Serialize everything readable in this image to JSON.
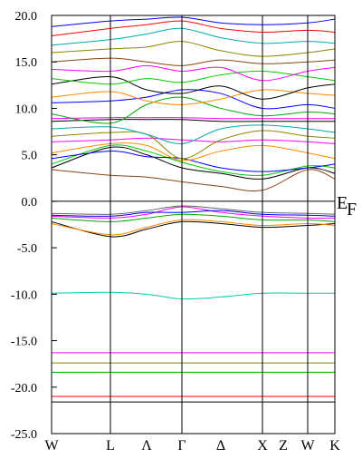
{
  "chart_data": {
    "type": "line",
    "title": "",
    "xlabel": "",
    "ylabel": "",
    "ylim": [
      -25,
      20
    ],
    "y_ticks": [
      20.0,
      15.0,
      10.0,
      5.0,
      0.0,
      -5.0,
      -10.0,
      -15.0,
      -20.0,
      -25.0
    ],
    "y_tick_labels": [
      "20.0",
      "15.0",
      "10.0",
      "5.0",
      "0.0",
      "-5.0",
      "-10.0",
      "-15.0",
      "-20.0",
      "-25.0"
    ],
    "k_path": [
      "W",
      "L",
      "Λ",
      "Γ",
      "Δ",
      "X",
      "Z",
      "W",
      "K"
    ],
    "high_symmetry_points": [
      "W",
      "L",
      "Γ",
      "X",
      "W",
      "K"
    ],
    "x": [
      0,
      1,
      2,
      3,
      4,
      5,
      6,
      7
    ],
    "fermi_label": {
      "main": "E",
      "sub": "F"
    },
    "grid": false,
    "legend": false,
    "series": [
      {
        "color": "#000000",
        "values": [
          -21.6,
          -21.6,
          -21.6,
          -21.6,
          -21.6,
          -21.6,
          -21.6,
          -21.6
        ]
      },
      {
        "color": "#ff0000",
        "values": [
          -21.0,
          -21.0,
          -21.0,
          -21.0,
          -21.0,
          -21.0,
          -21.0,
          -21.0
        ]
      },
      {
        "color": "#00aa00",
        "values": [
          -18.4,
          -18.4,
          -18.4,
          -18.4,
          -18.4,
          -18.4,
          -18.4,
          -18.4
        ]
      },
      {
        "color": "#888800",
        "values": [
          -17.4,
          -17.4,
          -17.4,
          -17.4,
          -17.4,
          -17.4,
          -17.4,
          -17.4
        ]
      },
      {
        "color": "#ff00ff",
        "values": [
          -16.3,
          -16.3,
          -16.3,
          -16.3,
          -16.3,
          -16.3,
          -16.3,
          -16.3
        ]
      },
      {
        "color": "#00ccaa",
        "values": [
          -9.9,
          -9.8,
          -10.0,
          -10.5,
          -10.3,
          -9.9,
          -9.9,
          -9.9
        ]
      },
      {
        "color": "#000000",
        "values": [
          -2.2,
          -3.8,
          -3.0,
          -2.2,
          -2.4,
          -2.8,
          -2.6,
          -2.4
        ]
      },
      {
        "color": "#ff8800",
        "values": [
          -2.4,
          -3.6,
          -2.8,
          -2.0,
          -2.2,
          -2.6,
          -2.4,
          -2.6
        ]
      },
      {
        "color": "#00aa00",
        "values": [
          -1.8,
          -2.2,
          -1.8,
          -1.4,
          -1.6,
          -2.0,
          -2.0,
          -2.2
        ]
      },
      {
        "color": "#ff00ff",
        "values": [
          -1.6,
          -1.8,
          -1.4,
          -0.6,
          -1.2,
          -1.6,
          -1.8,
          -1.8
        ]
      },
      {
        "color": "#0000ff",
        "values": [
          -1.5,
          -1.6,
          -1.2,
          -1.2,
          -1.0,
          -1.4,
          -1.5,
          -1.6
        ]
      },
      {
        "color": "#666666",
        "values": [
          -1.3,
          -1.4,
          -1.0,
          -0.5,
          -0.8,
          -1.2,
          -1.3,
          -1.4
        ]
      },
      {
        "color": "#000000",
        "values": [
          3.6,
          5.8,
          5.0,
          3.6,
          3.0,
          2.4,
          3.6,
          3.0
        ]
      },
      {
        "color": "#8b4513",
        "values": [
          3.4,
          2.8,
          2.6,
          2.1,
          1.6,
          1.2,
          3.4,
          2.4
        ]
      },
      {
        "color": "#00cc00",
        "values": [
          4.0,
          6.0,
          5.4,
          4.2,
          3.2,
          2.8,
          3.8,
          3.6
        ]
      },
      {
        "color": "#0000ff",
        "values": [
          4.6,
          5.4,
          4.8,
          4.6,
          3.6,
          3.2,
          3.6,
          4.0
        ]
      },
      {
        "color": "#ff8800",
        "values": [
          5.2,
          6.2,
          6.0,
          4.4,
          5.4,
          6.0,
          5.2,
          4.6
        ]
      },
      {
        "color": "#ff00ff",
        "values": [
          6.4,
          6.6,
          6.8,
          6.6,
          6.4,
          6.6,
          6.4,
          6.2
        ]
      },
      {
        "color": "#888800",
        "values": [
          7.0,
          7.4,
          7.2,
          4.6,
          6.6,
          7.6,
          7.0,
          6.8
        ]
      },
      {
        "color": "#00aaaa",
        "values": [
          7.8,
          8.0,
          7.2,
          6.2,
          7.8,
          8.2,
          7.8,
          7.4
        ]
      },
      {
        "color": "#000000",
        "values": [
          8.6,
          8.8,
          8.8,
          8.8,
          8.6,
          8.6,
          8.6,
          8.6
        ]
      },
      {
        "color": "#ff00ff",
        "values": [
          8.9,
          9.0,
          9.0,
          9.0,
          8.9,
          8.9,
          8.9,
          8.9
        ]
      },
      {
        "color": "#00aa00",
        "values": [
          9.4,
          8.4,
          10.4,
          11.2,
          10.0,
          9.2,
          9.6,
          9.4
        ]
      },
      {
        "color": "#0000ff",
        "values": [
          10.6,
          10.8,
          11.2,
          12.0,
          11.6,
          10.0,
          10.4,
          10.0
        ]
      },
      {
        "color": "#ff8800",
        "values": [
          11.2,
          11.8,
          10.8,
          10.4,
          11.0,
          12.0,
          11.6,
          11.4
        ]
      },
      {
        "color": "#000000",
        "values": [
          12.6,
          13.4,
          12.0,
          11.6,
          12.4,
          11.0,
          12.2,
          12.6
        ]
      },
      {
        "color": "#00cc00",
        "values": [
          13.2,
          12.6,
          13.2,
          12.8,
          13.6,
          14.0,
          13.4,
          13.0
        ]
      },
      {
        "color": "#ff00ff",
        "values": [
          14.2,
          14.0,
          14.6,
          14.0,
          14.4,
          13.0,
          14.0,
          14.4
        ]
      },
      {
        "color": "#8b4513",
        "values": [
          15.0,
          15.4,
          15.0,
          14.6,
          15.2,
          14.8,
          15.0,
          15.2
        ]
      },
      {
        "color": "#888800",
        "values": [
          16.0,
          16.4,
          16.6,
          17.2,
          16.2,
          15.6,
          16.0,
          16.4
        ]
      },
      {
        "color": "#00aaaa",
        "values": [
          16.8,
          17.4,
          18.0,
          18.6,
          17.6,
          17.0,
          17.2,
          17.0
        ]
      },
      {
        "color": "#ff0000",
        "values": [
          17.8,
          18.6,
          19.0,
          19.4,
          18.6,
          18.2,
          18.4,
          18.2
        ]
      },
      {
        "color": "#0000ff",
        "values": [
          18.8,
          19.4,
          19.6,
          19.8,
          19.2,
          19.0,
          19.2,
          19.6
        ]
      }
    ]
  }
}
